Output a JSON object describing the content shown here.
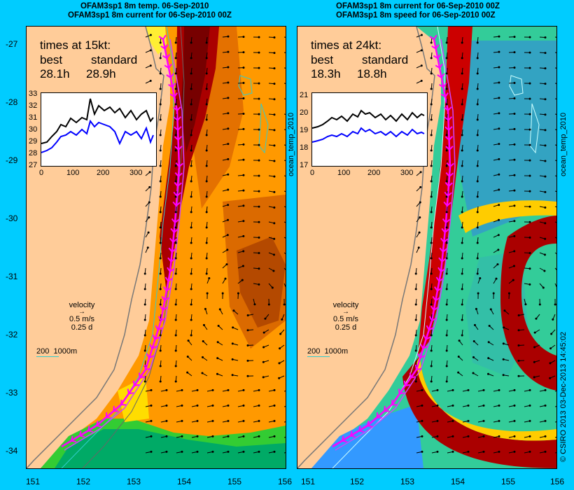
{
  "left": {
    "title1": "OFAM3sp1 8m temp. 06-Sep-2010",
    "title2": "OFAM3sp1 8m current for 06-Sep-2010 00Z",
    "box_title": "times at 15kt:",
    "col1": "best",
    "col2": "standard",
    "val1": "28.1h",
    "val2": "28.9h",
    "inset_yticks": [
      "33",
      "32",
      "31",
      "30",
      "29",
      "28",
      "27"
    ],
    "inset_xticks": [
      "0",
      "100",
      "200",
      "300"
    ],
    "side_label": "ocean_temp_2010"
  },
  "right": {
    "title1": "OFAM3sp1 8m current for 06-Sep-2010 00Z",
    "title2": "OFAM3sp1 8m speed for 06-Sep-2010 00Z",
    "box_title": "times at 24kt:",
    "col1": "best",
    "col2": "standard",
    "val1": "18.3h",
    "val2": "18.8h",
    "inset_yticks": [
      "21",
      "20",
      "19",
      "18",
      "17"
    ],
    "inset_xticks": [
      "0",
      "100",
      "200",
      "300"
    ],
    "side_label": "ocean_temp_2010"
  },
  "velocity": {
    "label": "velocity",
    "speed": "0.5 m/s",
    "duration": "0.25 d"
  },
  "depth_scale": {
    "a": "200",
    "b": "1000m"
  },
  "lat_ticks": [
    "-27",
    "-28",
    "-29",
    "-30",
    "-31",
    "-32",
    "-33",
    "-34"
  ],
  "lon_ticks": [
    "151",
    "152",
    "153",
    "154",
    "155",
    "156"
  ],
  "credit": "© CSIRO 2013   03-Dec-2013 14:45:02",
  "colors": {
    "background": "#00ccff",
    "land": "#ffcc99",
    "route": "#ff00ff",
    "warm": "#990000"
  }
}
